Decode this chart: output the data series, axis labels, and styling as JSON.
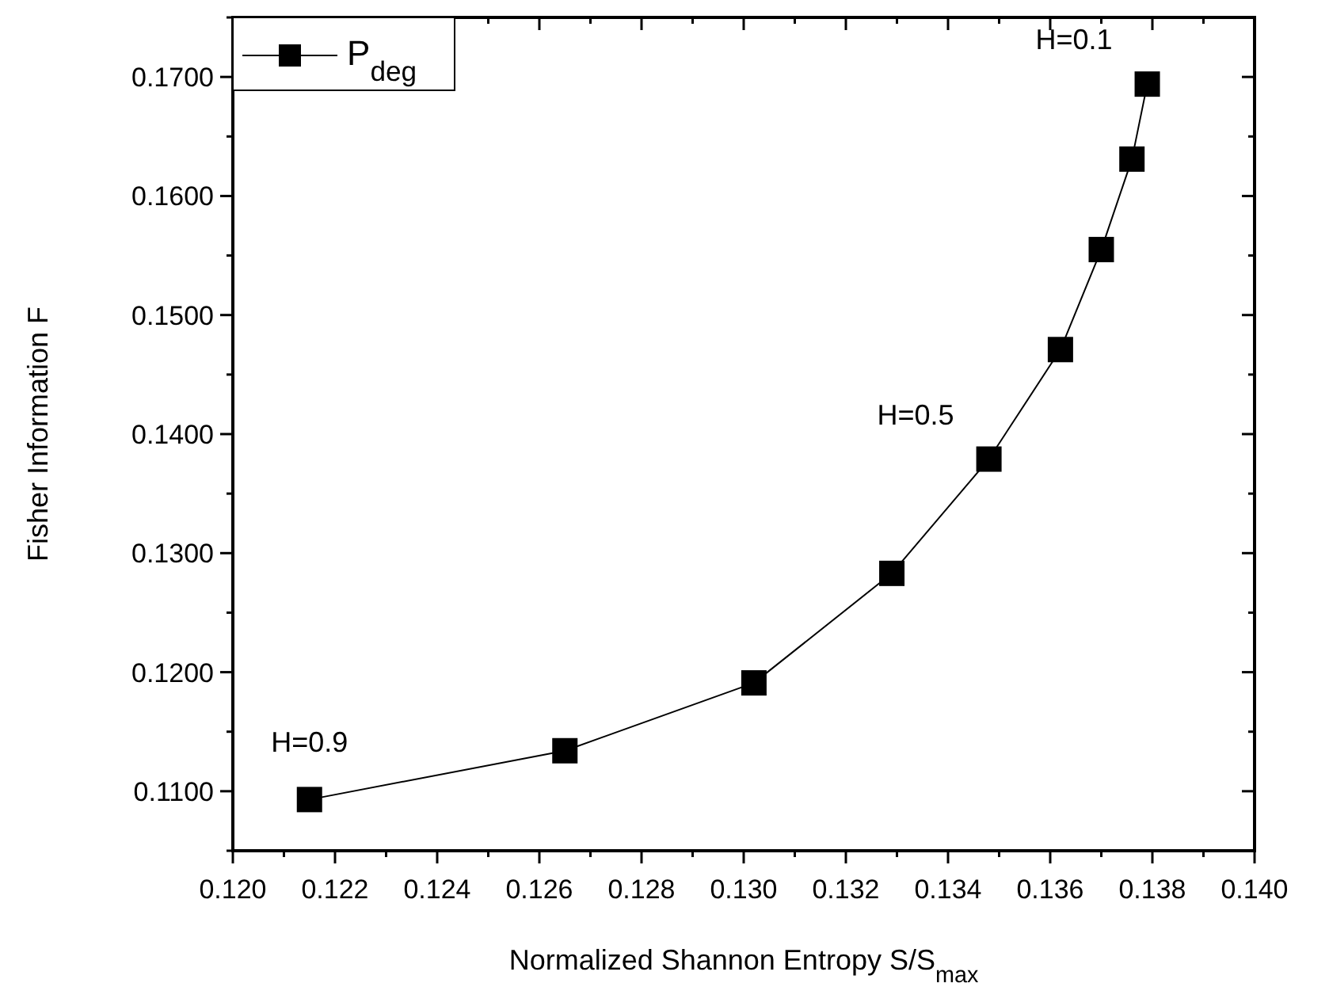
{
  "chart_data": {
    "type": "line",
    "xlabel": "Normalized Shannon Entropy S/S$_{max}$",
    "ylabel": "Fisher Information F",
    "x": [
      0.1215,
      0.1265,
      0.1302,
      0.1329,
      0.1348,
      0.1362,
      0.137,
      0.1376,
      0.1379
    ],
    "series": [
      {
        "name": "P$_{deg}$",
        "color": "#000000",
        "values": [
          0.1093,
          0.1134,
          0.1191,
          0.1283,
          0.1379,
          0.1471,
          0.1555,
          0.1631,
          0.1694
        ]
      }
    ],
    "xlim": [
      0.12,
      0.14
    ],
    "xticks": [
      {
        "value": 0.12,
        "label": "0.120"
      },
      {
        "value": 0.121,
        "label": null
      },
      {
        "value": 0.122,
        "label": "0.122"
      },
      {
        "value": 0.123,
        "label": null
      },
      {
        "value": 0.124,
        "label": "0.124"
      },
      {
        "value": 0.125,
        "label": null
      },
      {
        "value": 0.126,
        "label": "0.126"
      },
      {
        "value": 0.127,
        "label": null
      },
      {
        "value": 0.128,
        "label": "0.128"
      },
      {
        "value": 0.129,
        "label": null
      },
      {
        "value": 0.13,
        "label": "0.130"
      },
      {
        "value": 0.131,
        "label": null
      },
      {
        "value": 0.132,
        "label": "0.132"
      },
      {
        "value": 0.133,
        "label": null
      },
      {
        "value": 0.134,
        "label": "0.134"
      },
      {
        "value": 0.135,
        "label": null
      },
      {
        "value": 0.136,
        "label": "0.136"
      },
      {
        "value": 0.137,
        "label": null
      },
      {
        "value": 0.138,
        "label": "0.138"
      },
      {
        "value": 0.139,
        "label": null
      },
      {
        "value": 0.14,
        "label": "0.140"
      }
    ],
    "ylim": [
      0.105,
      0.175
    ],
    "yticks": [
      {
        "value": 0.105,
        "label": null
      },
      {
        "value": 0.11,
        "label": "0.1100"
      },
      {
        "value": 0.115,
        "label": null
      },
      {
        "value": 0.12,
        "label": "0.1200"
      },
      {
        "value": 0.125,
        "label": null
      },
      {
        "value": 0.13,
        "label": "0.1300"
      },
      {
        "value": 0.135,
        "label": null
      },
      {
        "value": 0.14,
        "label": "0.1400"
      },
      {
        "value": 0.145,
        "label": null
      },
      {
        "value": 0.15,
        "label": "0.1500"
      },
      {
        "value": 0.155,
        "label": null
      },
      {
        "value": 0.16,
        "label": "0.1600"
      },
      {
        "value": 0.165,
        "label": null
      },
      {
        "value": 0.17,
        "label": "0.1700"
      },
      {
        "value": 0.175,
        "label": null
      }
    ],
    "annotations": [
      {
        "text": "H=0.9",
        "x": 0.1215,
        "y": 0.1093
      },
      {
        "text": "H=0.5",
        "x": 0.1348,
        "y": 0.1379
      },
      {
        "text": "H=0.1",
        "x": 0.1379,
        "y": 0.1694
      }
    ],
    "legend": "top left",
    "marker": "square",
    "line_style": "solid",
    "grid": false
  }
}
